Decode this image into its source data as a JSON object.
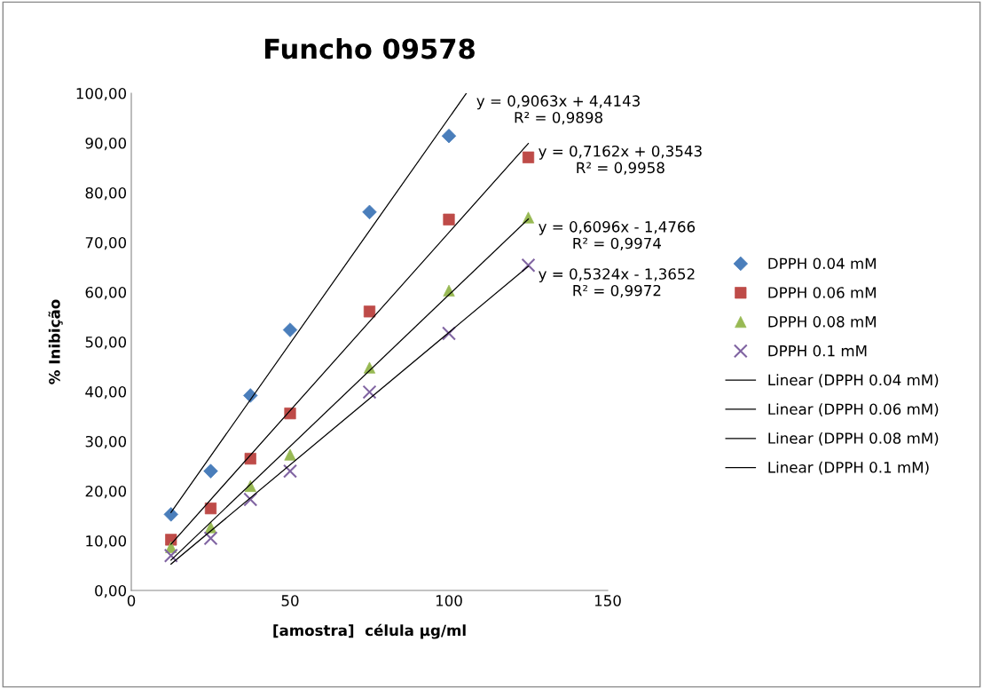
{
  "chart_data": {
    "type": "scatter",
    "title": "Funcho 09578",
    "xlabel": "[amostra]  célula µg/ml",
    "ylabel": "% Inibição",
    "xlim": [
      0,
      150
    ],
    "xticks": [
      0,
      50,
      100,
      150
    ],
    "ylim": [
      0,
      100
    ],
    "yticks": [
      {
        "value": 0,
        "label": "0,00"
      },
      {
        "value": 10,
        "label": "10,00"
      },
      {
        "value": 20,
        "label": "20,00"
      },
      {
        "value": 30,
        "label": "30,00"
      },
      {
        "value": 40,
        "label": "40,00"
      },
      {
        "value": 50,
        "label": "50,00"
      },
      {
        "value": 60,
        "label": "60,00"
      },
      {
        "value": 70,
        "label": "70,00"
      },
      {
        "value": 80,
        "label": "80,00"
      },
      {
        "value": 90,
        "label": "90,00"
      },
      {
        "value": 100,
        "label": "100,00"
      }
    ],
    "grid": false,
    "legend": "right",
    "series": [
      {
        "name": "DPPH 0.04 mM",
        "marker": "diamond",
        "color": "#4a7ebb",
        "x": [
          12.5,
          25,
          37.5,
          50,
          75,
          100
        ],
        "values": [
          15.3,
          24.0,
          39.2,
          52.4,
          76.1,
          91.4
        ]
      },
      {
        "name": "DPPH 0.06 mM",
        "marker": "square",
        "color": "#be4b48",
        "x": [
          12.5,
          25,
          37.5,
          50,
          75,
          100,
          125
        ],
        "values": [
          10.2,
          16.5,
          26.5,
          35.6,
          56.1,
          74.6,
          87.1
        ]
      },
      {
        "name": "DPPH 0.08 mM",
        "marker": "triangle",
        "color": "#98b954",
        "x": [
          12.5,
          25,
          37.5,
          50,
          75,
          100,
          125
        ],
        "values": [
          8.7,
          12.7,
          21.0,
          27.3,
          44.8,
          60.3,
          75.0
        ]
      },
      {
        "name": "DPPH 0.1 mM",
        "marker": "cross",
        "color": "#8064a2",
        "x": [
          12.5,
          25,
          37.5,
          50,
          75,
          100,
          125
        ],
        "values": [
          7.0,
          10.5,
          18.3,
          24.0,
          39.9,
          51.7,
          65.4
        ]
      },
      {
        "name": "Linear (DPPH 0.04 mM)",
        "type": "line",
        "marker": "none",
        "color": "#000000",
        "x": [
          12.5,
          105.5
        ],
        "values": [
          15.7,
          100.0
        ]
      },
      {
        "name": "Linear (DPPH 0.06 mM)",
        "type": "line",
        "marker": "none",
        "color": "#000000",
        "x": [
          12.5,
          125
        ],
        "values": [
          9.3,
          89.9
        ]
      },
      {
        "name": "Linear (DPPH 0.08 mM)",
        "type": "line",
        "marker": "none",
        "color": "#000000",
        "x": [
          12.5,
          125
        ],
        "values": [
          6.1,
          74.7
        ]
      },
      {
        "name": "Linear (DPPH 0.1 mM)",
        "type": "line",
        "marker": "none",
        "color": "#000000",
        "x": [
          12.5,
          125
        ],
        "values": [
          5.3,
          65.2
        ]
      }
    ],
    "annotations": [
      "y = 0,9063x + 4,4143\nR² = 0,9898",
      "y = 0,7162x + 0,3543\nR² = 0,9958",
      "y = 0,6096x - 1,4766\nR² = 0,9974",
      "y = 0,5324x - 1,3652\nR² = 0,9972"
    ]
  }
}
